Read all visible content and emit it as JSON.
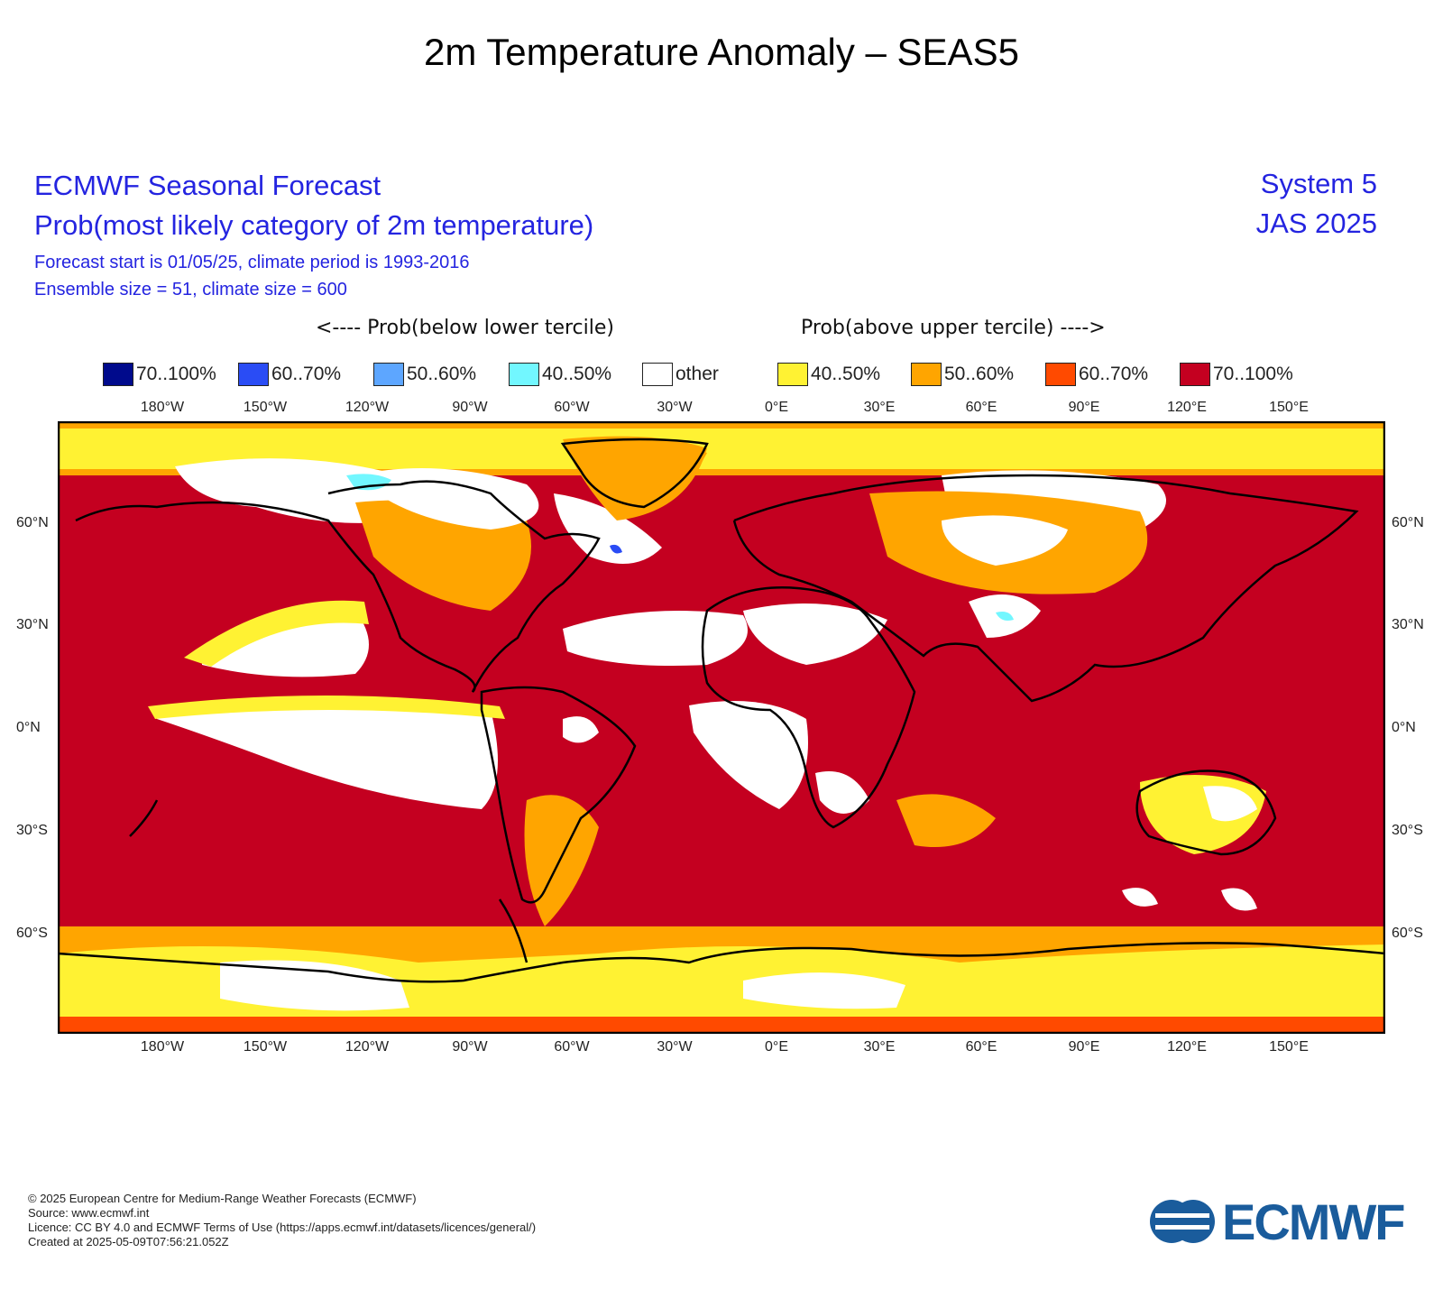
{
  "title": "2m Temperature Anomaly – SEAS5",
  "header": {
    "line1": "ECMWF Seasonal Forecast",
    "line2": "Prob(most likely category of 2m temperature)",
    "line3": "Forecast start is 01/05/25, climate period is 1993-2016",
    "line4": "Ensemble size = 51, climate size = 600",
    "system": "System 5",
    "period": "JAS 2025"
  },
  "legend": {
    "below_label": "<---- Prob(below lower tercile)",
    "above_label": "Prob(above upper tercile) ---->",
    "items": [
      {
        "label": "70..100%",
        "color": "#000a8c"
      },
      {
        "label": "60..70%",
        "color": "#2a4cf5"
      },
      {
        "label": "50..60%",
        "color": "#5da6ff"
      },
      {
        "label": "40..50%",
        "color": "#72f7ff"
      },
      {
        "label": "other",
        "color": "#ffffff"
      },
      {
        "label": "40..50%",
        "color": "#fff233"
      },
      {
        "label": "50..60%",
        "color": "#ffa500"
      },
      {
        "label": "60..70%",
        "color": "#ff4a00"
      },
      {
        "label": "70..100%",
        "color": "#c40020"
      }
    ]
  },
  "axes": {
    "lon_ticks": [
      "180°W",
      "150°W",
      "120°W",
      "90°W",
      "60°W",
      "30°W",
      "0°E",
      "30°E",
      "60°E",
      "90°E",
      "120°E",
      "150°E"
    ],
    "lat_ticks": [
      "60°N",
      "30°N",
      "0°N",
      "30°S",
      "60°S"
    ]
  },
  "footer": {
    "copyright": "© 2025 European Centre for Medium-Range Weather Forecasts (ECMWF)",
    "source": "Source: www.ecmwf.int",
    "licence": "Licence: CC BY 4.0 and ECMWF Terms of Use (https://apps.ecmwf.int/datasets/licences/general/)",
    "created": "Created at 2025-05-09T07:56:21.052Z"
  },
  "logo": {
    "text": "ECMWF",
    "color": "#1a5c9c"
  }
}
